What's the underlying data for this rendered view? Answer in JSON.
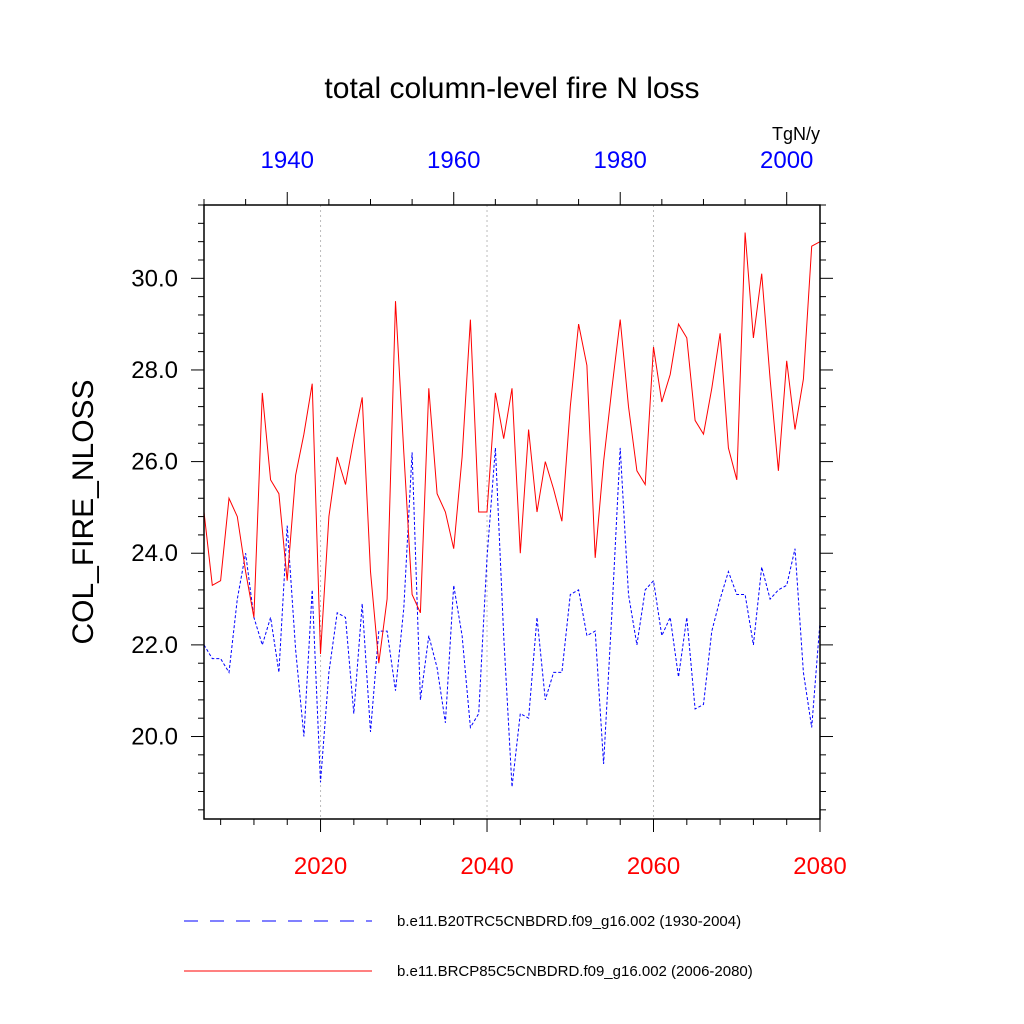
{
  "chart_data": {
    "type": "line",
    "title": "total column-level fire N loss",
    "units": "TgN/y",
    "ylabel": "COL_FIRE_NLOSS",
    "xlabel": "",
    "ylim": [
      18.2,
      31.6
    ],
    "y_ticks": [
      20.0,
      22.0,
      24.0,
      26.0,
      28.0,
      30.0
    ],
    "y_tick_labels": [
      "20.0",
      "22.0",
      "24.0",
      "26.0",
      "28.0",
      "30.0"
    ],
    "bottom_axis": {
      "xlim": [
        2006,
        2080
      ],
      "ticks": [
        2020,
        2040,
        2060,
        2080
      ],
      "tick_labels": [
        "2020",
        "2040",
        "2060",
        "2080"
      ],
      "color": "#ff0000"
    },
    "top_axis": {
      "xlim": [
        1930,
        2004
      ],
      "ticks": [
        1940,
        1960,
        1980,
        2000
      ],
      "tick_labels": [
        "1940",
        "1960",
        "1980",
        "2000"
      ],
      "color": "#0000ff"
    },
    "gridlines_x": [
      2020,
      2040,
      2060
    ],
    "series": [
      {
        "name": "b.e11.B20TRC5CNBDRD.f09_g16.002 (1930-2004)",
        "axis": "top",
        "color": "#0000ff",
        "style": "dashed",
        "start": 1930,
        "values": [
          22.0,
          21.7,
          21.7,
          21.4,
          23.0,
          24.0,
          22.6,
          22.0,
          22.6,
          21.4,
          24.6,
          21.9,
          20.0,
          23.2,
          19.0,
          21.4,
          22.7,
          22.6,
          20.5,
          22.9,
          20.1,
          22.3,
          22.3,
          21.0,
          22.8,
          26.2,
          20.8,
          22.2,
          21.5,
          20.3,
          23.3,
          22.2,
          20.2,
          20.5,
          23.9,
          26.3,
          22.2,
          18.9,
          20.5,
          20.4,
          22.6,
          20.8,
          21.4,
          21.4,
          23.1,
          23.2,
          22.2,
          22.3,
          19.4,
          22.7,
          26.3,
          23.1,
          22.0,
          23.2,
          23.4,
          22.2,
          22.6,
          21.3,
          22.6,
          20.6,
          20.7,
          22.3,
          23.0,
          23.6,
          23.1,
          23.1,
          22.0,
          23.7,
          23.0,
          23.2,
          23.3,
          24.1,
          21.4,
          20.2,
          22.5
        ]
      },
      {
        "name": "b.e11.BRCP85C5CNBDRD.f09_g16.002 (2006-2080)",
        "axis": "bottom",
        "color": "#ff0000",
        "style": "solid",
        "start": 2006,
        "values": [
          24.9,
          23.3,
          23.4,
          25.2,
          24.8,
          23.6,
          22.6,
          27.5,
          25.6,
          25.3,
          23.4,
          25.7,
          26.6,
          27.7,
          21.8,
          24.8,
          26.1,
          25.5,
          26.5,
          27.4,
          23.6,
          21.6,
          23.0,
          29.5,
          26.2,
          23.1,
          22.7,
          27.6,
          25.3,
          24.9,
          24.1,
          26.1,
          29.1,
          24.9,
          24.9,
          27.5,
          26.5,
          27.6,
          24.0,
          26.7,
          24.9,
          26.0,
          25.4,
          24.7,
          27.2,
          29.0,
          28.1,
          23.9,
          26.0,
          27.6,
          29.1,
          27.2,
          25.8,
          25.5,
          28.5,
          27.3,
          27.9,
          29.0,
          28.7,
          26.9,
          26.6,
          27.6,
          28.8,
          26.3,
          25.6,
          31.0,
          28.7,
          30.1,
          27.8,
          25.8,
          28.2,
          26.7,
          27.8,
          30.7,
          30.8
        ]
      }
    ],
    "legend": {
      "placement": "bottom",
      "entries": [
        "b.e11.B20TRC5CNBDRD.f09_g16.002 (1930-2004)",
        "b.e11.BRCP85C5CNBDRD.f09_g16.002 (2006-2080)"
      ]
    }
  }
}
